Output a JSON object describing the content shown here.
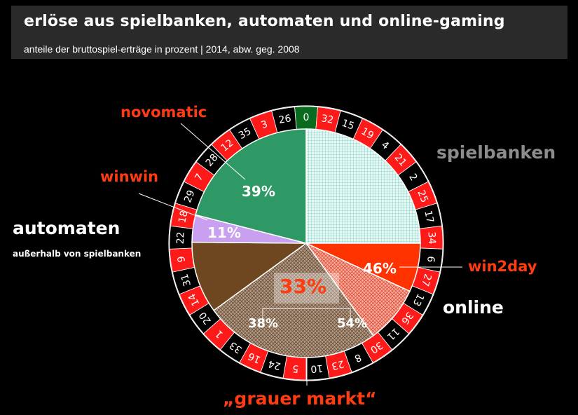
{
  "header": {
    "title": "erlöse aus spielbanken, automaten und online-gaming",
    "subtitle": "anteile der bruttospiel-erträge in prozent | 2014, abw. geg. 2008"
  },
  "chart_data": {
    "type": "pie",
    "slices": [
      {
        "label": "spielbanken",
        "value": 25,
        "color": "#bfe7e0"
      },
      {
        "label": "online",
        "value": 15,
        "color": "#ff3300"
      },
      {
        "label": "„grauer markt“",
        "value": 25,
        "color": "#a08672"
      },
      {
        "label": "automaten",
        "value": 35,
        "color": "#2e9965"
      }
    ],
    "data_labels": [
      {
        "text": "39%",
        "slice": "novomatic"
      },
      {
        "text": "11%",
        "slice": "winwin"
      },
      {
        "text": "46%",
        "slice": "win2day"
      },
      {
        "text": "38%",
        "slice": "grauer markt automaten"
      },
      {
        "text": "54%",
        "slice": "grauer markt online"
      },
      {
        "text": "33%",
        "slice": "grauer markt"
      }
    ],
    "annotations": [
      "novomatic",
      "winwin",
      "automaten",
      "außerhalb von spielbanken",
      "spielbanken",
      "win2day",
      "online",
      "„grauer markt“"
    ],
    "roulette_numbers": [
      "0",
      "32",
      "15",
      "19",
      "4",
      "21",
      "2",
      "25",
      "17",
      "34",
      "6",
      "27",
      "13",
      "36",
      "11",
      "30",
      "8",
      "23",
      "10",
      "5",
      "24",
      "16",
      "33",
      "1",
      "20",
      "14",
      "31",
      "9",
      "22",
      "18",
      "29",
      "7",
      "28",
      "12",
      "35",
      "3",
      "26"
    ],
    "colors": {
      "red": "#ff1a1a",
      "green": "#0a6b1e",
      "wheel_black": "#000000",
      "novomatic": "#2e9965",
      "winwin": "#c9a0f0",
      "automaten_other": "#6e4720",
      "win2day": "#ff3300",
      "online_grey": "#f08070",
      "grey_market": "#a08672"
    }
  },
  "labels": {
    "novomatic": "novomatic",
    "winwin": "winwin",
    "automaten": "automaten",
    "automaten_sub": "außerhalb von spielbanken",
    "spielbanken": "spielbanken",
    "win2day": "win2day",
    "online": "online",
    "grauer_markt": "„grauer markt“",
    "pct_novomatic": "39%",
    "pct_winwin": "11%",
    "pct_win2day": "46%",
    "pct_grey_auto": "38%",
    "pct_grey_online": "54%",
    "pct_grey_total": "33%"
  }
}
